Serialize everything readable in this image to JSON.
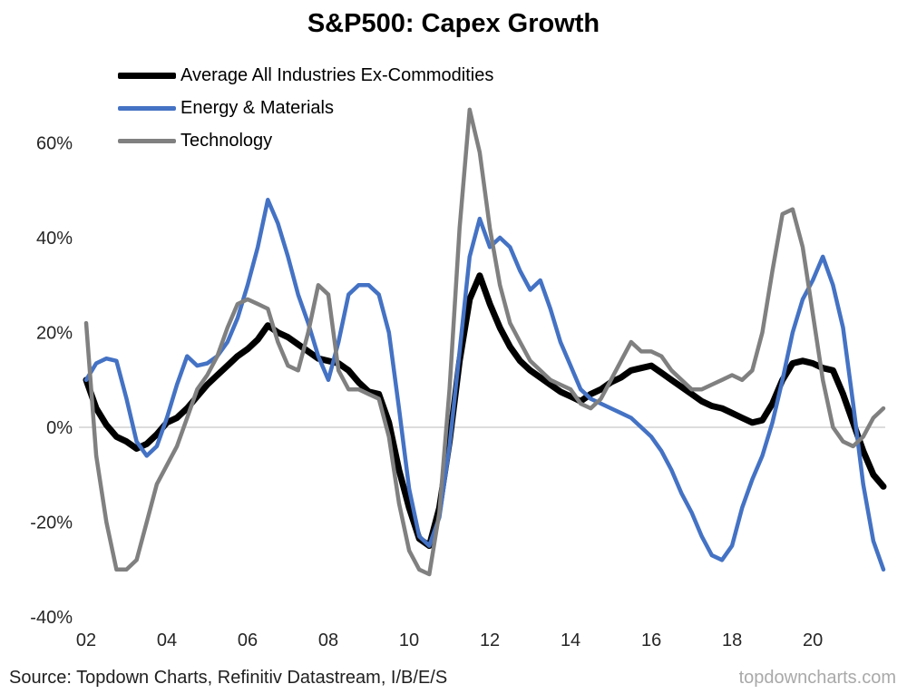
{
  "title": "S&P500: Capex Growth",
  "footer": {
    "source": "Source: Topdown Charts, Refinitiv Datastream, I/B/E/S",
    "watermark": "topdowncharts.com"
  },
  "chart_data": {
    "type": "line",
    "title": "S&P500: Capex Growth",
    "x_unit": "year",
    "x_range": [
      2002,
      2021.75
    ],
    "y_range": [
      -40,
      60
    ],
    "grid": "zero-line-only",
    "legend_position": "top-left",
    "zero_line_color": "#d0d0d0",
    "x_ticks": [
      {
        "v": 2002,
        "label": "02"
      },
      {
        "v": 2004,
        "label": "04"
      },
      {
        "v": 2006,
        "label": "06"
      },
      {
        "v": 2008,
        "label": "08"
      },
      {
        "v": 2010,
        "label": "10"
      },
      {
        "v": 2012,
        "label": "12"
      },
      {
        "v": 2014,
        "label": "14"
      },
      {
        "v": 2016,
        "label": "16"
      },
      {
        "v": 2018,
        "label": "18"
      },
      {
        "v": 2020,
        "label": "20"
      }
    ],
    "y_ticks": [
      {
        "v": 60,
        "label": "60%"
      },
      {
        "v": 40,
        "label": "40%"
      },
      {
        "v": 20,
        "label": "20%"
      },
      {
        "v": 0,
        "label": "0%"
      },
      {
        "v": -20,
        "label": "-20%"
      },
      {
        "v": -40,
        "label": "-40%"
      }
    ],
    "series": [
      {
        "name": "Average All Industries Ex-Commodities",
        "color": "#000000",
        "stroke_width": 7,
        "x_start": 2002,
        "x_step": 0.25,
        "values": [
          10,
          4,
          0.5,
          -2,
          -3,
          -4.5,
          -3.5,
          -1.5,
          1,
          2,
          4,
          6.5,
          9,
          11,
          13,
          15,
          16.5,
          18.5,
          21.5,
          20,
          19,
          17.5,
          16,
          14.5,
          14,
          13.5,
          12,
          9.5,
          7.5,
          7,
          1,
          -9,
          -17,
          -23.5,
          -25,
          -17,
          -3,
          14,
          27,
          32,
          26,
          21,
          17,
          14,
          12,
          10.5,
          9,
          7.5,
          6.5,
          5.5,
          7,
          8,
          9.5,
          10.5,
          12,
          12.5,
          13,
          11.5,
          10,
          8.5,
          7,
          5.5,
          4.5,
          4,
          3,
          2,
          1,
          1.5,
          5,
          10,
          13.5,
          14,
          13.5,
          12.5,
          12,
          7,
          1,
          -5,
          -10,
          -12.5
        ]
      },
      {
        "name": "Energy & Materials",
        "color": "#4472c4",
        "stroke_width": 4.5,
        "x_start": 2002,
        "x_step": 0.25,
        "values": [
          10,
          13.5,
          14.5,
          14,
          6,
          -3,
          -6,
          -4,
          2,
          9,
          15,
          13,
          13.5,
          15,
          18,
          23,
          30,
          38,
          48,
          43,
          36,
          28,
          22,
          15,
          10,
          18,
          28,
          30,
          30,
          28,
          20,
          4,
          -13,
          -23,
          -25,
          -19,
          -4,
          16,
          36,
          44,
          38,
          40,
          38,
          33,
          29,
          31,
          25,
          18,
          13,
          8,
          6,
          5,
          4,
          3,
          2,
          0,
          -2,
          -5,
          -9,
          -14,
          -18,
          -23,
          -27,
          -28,
          -25,
          -17,
          -11,
          -6,
          1,
          10,
          20,
          27,
          31,
          36,
          30,
          21,
          5,
          -12,
          -24,
          -30
        ]
      },
      {
        "name": "Technology",
        "color": "#808080",
        "stroke_width": 4.5,
        "x_start": 2002,
        "x_step": 0.25,
        "values": [
          22,
          -6,
          -20,
          -30,
          -30,
          -28,
          -20,
          -12,
          -8,
          -4,
          2,
          8,
          11,
          15,
          21,
          26,
          27,
          26,
          25,
          18,
          13,
          12,
          20,
          30,
          28,
          12,
          8,
          8,
          7,
          6,
          -2,
          -16,
          -26,
          -30,
          -31,
          -18,
          8,
          42,
          67,
          58,
          42,
          30,
          22,
          18,
          14,
          12,
          10,
          9,
          8,
          5,
          4,
          6,
          10,
          14,
          18,
          16,
          16,
          15,
          12,
          10,
          8,
          8,
          9,
          10,
          11,
          10,
          12,
          20,
          33,
          45,
          46,
          38,
          24,
          10,
          0,
          -3,
          -4,
          -2,
          2,
          4
        ]
      }
    ]
  }
}
